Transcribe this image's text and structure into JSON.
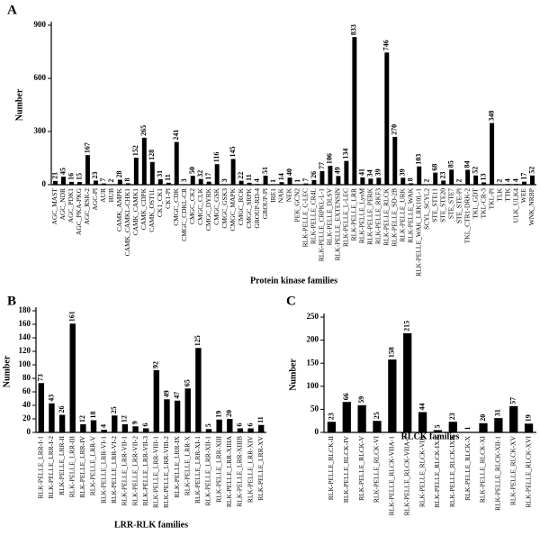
{
  "chart_data": [
    {
      "type": "bar",
      "label": "A",
      "xlabel": "Protein kinase families",
      "ylabel": "Number",
      "color": "#000000",
      "categories": [
        "AGC_MAST",
        "AGC_NDR",
        "AGC_PDK1",
        "AGC_PKA-PKG",
        "AGC_RSK-2",
        "AGC-Pl",
        "AUR",
        "BUB",
        "CAMK_AMPK",
        "CAMK_CAMKL-CHK1",
        "CAMK_CAMK1",
        "CAMK_CDPK",
        "CAMK_OST1L",
        "CK1_CK1",
        "CK1-Pl",
        "CMGC_CDK",
        "CMGC_CDKL-CR",
        "CMGC_CK2",
        "CMGC_CLK",
        "CMGC_DYRK",
        "CMGC_GSK",
        "CMGC_GSK3",
        "CMGC_MAPK",
        "CMGC_RCK",
        "CMGC_SRPK",
        "GROUP-RD-4",
        "GROUP-Pl",
        "IRE1",
        "NAK",
        "NEK",
        "PEK_GCN2",
        "RLK-PELLE_C-LEC",
        "RLK-PELLE_CR4L",
        "RLK-PELLE_CRPKL-L-1",
        "RLK-PELLE_DLSV",
        "RLK-PELLE_EXTENSIN",
        "RLK-PELLE_L-LEC",
        "RLK-PELLE_LRR",
        "RLK-PELLE_LysM",
        "RLK-PELLE_PERK",
        "RLK-PELLE_RKF3",
        "RLK-PELLE_RLCK",
        "RLK-PELLE_SD-2B",
        "RLK-PELLE_URK",
        "RLK-PELLE_WAK",
        "RLK-PELLE_WAK_LRK10L-1",
        "SCYL_SCYL2",
        "STE_STE11",
        "STE_STE20",
        "STE_STE7",
        "STE_STE-Pl",
        "TKL_CTR1-DRK-2",
        "TKL_GDT",
        "TKL-CR-3",
        "TKL-Pl",
        "TLK",
        "TTK",
        "ULK_ULK4",
        "WEE",
        "WNK_NRBP"
      ],
      "values": [
        21,
        45,
        16,
        15,
        167,
        23,
        7,
        2,
        28,
        8,
        152,
        265,
        128,
        31,
        11,
        241,
        3,
        50,
        32,
        17,
        116,
        3,
        145,
        22,
        11,
        4,
        51,
        1,
        14,
        40,
        1,
        7,
        26,
        77,
        106,
        49,
        134,
        833,
        41,
        34,
        39,
        746,
        270,
        39,
        8,
        103,
        2,
        68,
        23,
        85,
        2,
        84,
        52,
        13,
        348,
        2,
        4,
        4,
        17,
        52
      ],
      "ylim": [
        0,
        900
      ],
      "yticks": [
        0,
        300,
        600,
        900
      ]
    },
    {
      "type": "bar",
      "label": "B",
      "xlabel": "LRR-RLK families",
      "ylabel": "Number",
      "color": "#000000",
      "categories": [
        "RLK-PELLE_LRR-I-1",
        "RLK-PELLE_LRR-I-2",
        "RLK-PELLE_LRR-II",
        "RLK-PELLE_LRR-III",
        "RLK-PELLE_LRR-IV",
        "RLK-PELLE_LRR-V",
        "RLK-PELLE_LRR-VI-1",
        "RLK-PELLE_LRR-VI-2",
        "RLK-PELLE_LRR-VII-1",
        "RLK-PELLE_LRR-VII-2",
        "RLK-PELLE_LRR-VII-3",
        "RLK-PELLE_LRR-VIII-1",
        "RLK-PELLE_LRR-VIII-2",
        "RLK-PELLE_LRR-IX",
        "RLK-PELLE_LRR-X",
        "RLK-PELLE_LRR-XI-1",
        "RLK-PELLE_LRR-XII-1",
        "RLK-PELLE_LRR-XIII",
        "RLK-PELLE_LRR-XIIIA",
        "RLK-PELLE_LRR-XIIIB",
        "RLK-PELLE_LRR-XIV",
        "RLK-PELLE_LRR-XV"
      ],
      "values": [
        73,
        43,
        26,
        161,
        12,
        18,
        4,
        25,
        12,
        9,
        6,
        92,
        49,
        47,
        65,
        125,
        5,
        19,
        20,
        6,
        6,
        11
      ],
      "ylim": [
        0,
        180
      ],
      "yticks": [
        0,
        20,
        40,
        60,
        80,
        100,
        120,
        140,
        160,
        180
      ]
    },
    {
      "type": "bar",
      "label": "C",
      "xlabel": "RLCK families",
      "ylabel": "Number",
      "color": "#000000",
      "categories": [
        "RLK-PELLE_RLCK-II",
        "RLK-PELLE_RLCK-IV",
        "RLK-PELLE_RLCK-V",
        "RLK-PELLE_RLCK-VI",
        "RLK-PELLE_RLCK-VIIA-1",
        "RLK-PELLE_RLCK-VIIA-2",
        "RLK-PELLE_RLCK-VIII",
        "RLK-PELLE_RLCK-IXA",
        "RLK-PELLE_RLCK-IXB",
        "RLK-PELLE_RLCK-X",
        "RLK-PELLE_RLCK-XI",
        "RLK-PELLE_RLCK-XII-1",
        "RLK-PELLE_RLCK-XV",
        "RLK-PELLE_RLCK-XVI"
      ],
      "values": [
        23,
        66,
        59,
        25,
        158,
        215,
        44,
        5,
        23,
        1,
        20,
        31,
        57,
        19
      ],
      "ylim": [
        0,
        250
      ],
      "yticks": [
        0,
        50,
        100,
        150,
        200,
        250
      ]
    }
  ]
}
